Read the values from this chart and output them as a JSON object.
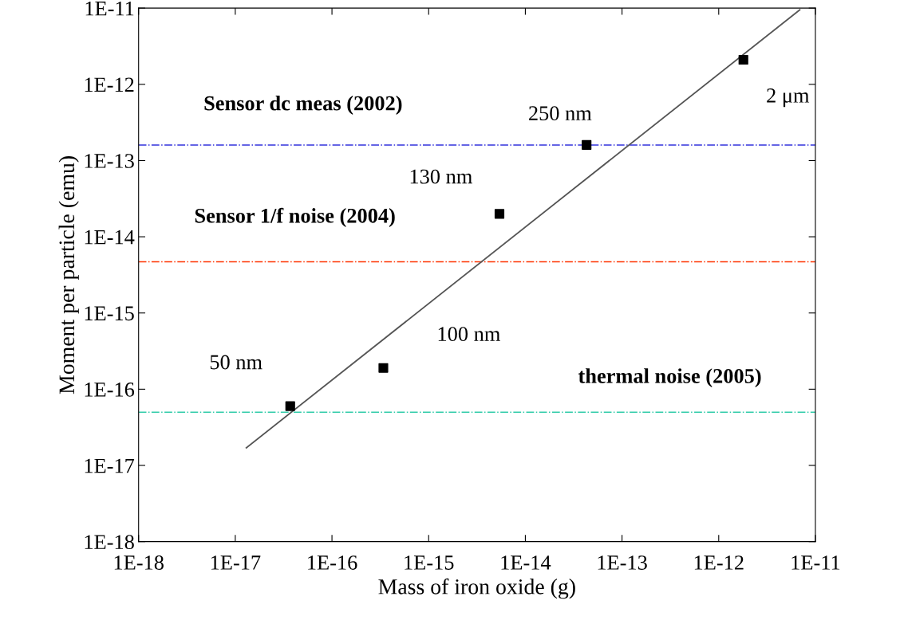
{
  "chart_data": {
    "type": "scatter",
    "xlabel": "Mass of iron oxide (g)",
    "ylabel": "Moment per particle (emu)",
    "log": "xy",
    "grid": false,
    "marker": "square",
    "series": [
      {
        "color": "#000000",
        "x": [
          3.7e-17,
          3.4e-16,
          5.4e-15,
          4.3e-14,
          1.8e-12
        ],
        "values": [
          6e-17,
          1.9e-16,
          2e-14,
          1.6e-13,
          2.1e-12
        ]
      },
      {
        "type": "line",
        "color": "#555555",
        "x": [
          1.3e-17,
          6.9e-12
        ],
        "values": [
          1.7e-17,
          9.5e-12
        ],
        "marker": "none",
        "line_style": "solid"
      }
    ],
    "ref_lines": [
      {
        "axis": "y",
        "value": 1.6e-13,
        "color": "#3333dd",
        "line_style": "dashdot",
        "label": "Sensor dc meas (2002)"
      },
      {
        "axis": "y",
        "value": 4.7e-15,
        "color": "#ff3300",
        "line_style": "dashdot",
        "label": "Sensor 1/f noise (2004)"
      },
      {
        "axis": "y",
        "value": 5e-17,
        "color": "#33ccaa",
        "line_style": "dashdot",
        "label": "thermal noise (2005)"
      }
    ],
    "annotations": [
      {
        "text": "50 nm",
        "x": 3.7e-17,
        "y": 6e-17
      },
      {
        "text": "100 nm",
        "x": 3.4e-16,
        "y": 1.9e-16
      },
      {
        "text": "130 nm",
        "x": 5.4e-15,
        "y": 2e-14
      },
      {
        "text": "250 nm",
        "x": 4.3e-14,
        "y": 1.6e-13
      },
      {
        "text": "2 μm",
        "x": 1.8e-12,
        "y": 2.1e-12
      }
    ],
    "xlim": [
      1e-18,
      1e-11
    ],
    "ylim": [
      1e-18,
      1e-11
    ],
    "xticks": [
      {
        "value": 1e-18,
        "label": "1E-18"
      },
      {
        "value": 1e-17,
        "label": "1E-17"
      },
      {
        "value": 1e-16,
        "label": "1E-16"
      },
      {
        "value": 1e-15,
        "label": "1E-15"
      },
      {
        "value": 1e-14,
        "label": "1E-14"
      },
      {
        "value": 1e-13,
        "label": "1E-13"
      },
      {
        "value": 1e-12,
        "label": "1E-12"
      },
      {
        "value": 1e-11,
        "label": "1E-11"
      }
    ],
    "yticks": [
      {
        "value": 1e-18,
        "label": "1E-18"
      },
      {
        "value": 1e-17,
        "label": "1E-17"
      },
      {
        "value": 1e-16,
        "label": "1E-16"
      },
      {
        "value": 1e-15,
        "label": "1E-15"
      },
      {
        "value": 1e-14,
        "label": "1E-14"
      },
      {
        "value": 1e-13,
        "label": "1E-13"
      },
      {
        "value": 1e-12,
        "label": "1E-12"
      },
      {
        "value": 1e-11,
        "label": "1E-11"
      }
    ]
  }
}
